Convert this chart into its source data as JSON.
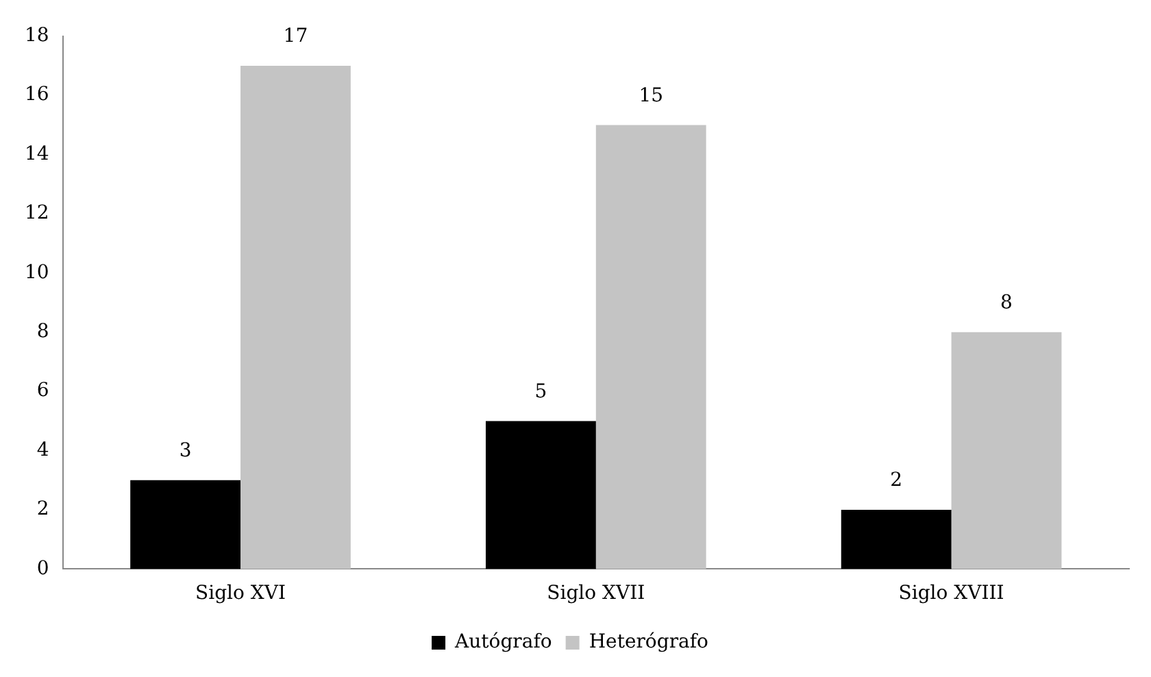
{
  "chart_data": {
    "type": "bar",
    "categories": [
      "Siglo XVI",
      "Siglo XVII",
      "Siglo XVIII"
    ],
    "series": [
      {
        "name": "Autógrafo",
        "color": "#000000",
        "values": [
          3,
          5,
          2
        ]
      },
      {
        "name": "Heterógrafo",
        "color": "#c4c4c4",
        "values": [
          17,
          15,
          8
        ]
      }
    ],
    "ylim": [
      0,
      18
    ],
    "yticks": [
      0,
      2,
      4,
      6,
      8,
      10,
      12,
      14,
      16,
      18
    ],
    "grid": false,
    "legend": "bottom",
    "data_labels": true
  }
}
